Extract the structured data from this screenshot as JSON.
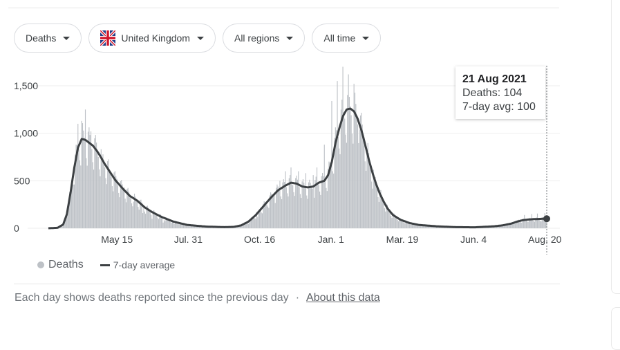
{
  "filters": {
    "metric": "Deaths",
    "country": "United Kingdom",
    "country_flag_icon": "uk-flag-icon",
    "region": "All regions",
    "time": "All time"
  },
  "tooltip": {
    "date": "21 Aug 2021",
    "deaths": "Deaths: 104",
    "avg": "7-day avg: 100"
  },
  "legend": {
    "deaths": "Deaths",
    "avg": "7-day average"
  },
  "footer": {
    "note": "Each day shows deaths reported since the previous day",
    "separator": "·",
    "link": "About this data"
  },
  "colors": {
    "bars": "#bdc1c6",
    "line": "#3c4043",
    "grid": "#eeeeee",
    "axis_text": "#3c4043"
  },
  "chart_data": {
    "type": "bar",
    "title": "",
    "xlabel": "",
    "ylabel": "",
    "ylim": [
      0,
      1700
    ],
    "yticks": [
      0,
      500,
      1000,
      1500
    ],
    "ytick_labels": [
      "0",
      "500",
      "1,000",
      "1,500"
    ],
    "xlim_days": [
      0,
      538
    ],
    "xticks_days": [
      74,
      151,
      228,
      305,
      382,
      459,
      536
    ],
    "xtick_labels": [
      "May 15",
      "Jul. 31",
      "Oct. 16",
      "Jan. 1",
      "Mar. 19",
      "Jun. 4",
      "Aug. 20"
    ],
    "grid": true,
    "legend_position": "bottom-left",
    "series": [
      {
        "name": "7-day average",
        "type": "line",
        "x_days": [
          0,
          10,
          16,
          20,
          24,
          28,
          32,
          36,
          40,
          44,
          48,
          52,
          56,
          60,
          66,
          72,
          80,
          88,
          96,
          104,
          112,
          122,
          135,
          150,
          170,
          190,
          200,
          208,
          216,
          224,
          232,
          240,
          248,
          256,
          262,
          268,
          274,
          280,
          286,
          292,
          298,
          302,
          306,
          310,
          314,
          318,
          322,
          326,
          330,
          334,
          338,
          342,
          346,
          350,
          354,
          358,
          362,
          366,
          372,
          380,
          390,
          400,
          420,
          440,
          460,
          480,
          490,
          500,
          506,
          512,
          518,
          524,
          530,
          534,
          538
        ],
        "values": [
          0,
          5,
          40,
          150,
          380,
          640,
          850,
          940,
          930,
          900,
          870,
          820,
          760,
          690,
          600,
          510,
          420,
          340,
          290,
          220,
          170,
          120,
          70,
          35,
          18,
          12,
          15,
          30,
          70,
          140,
          230,
          320,
          400,
          450,
          480,
          470,
          440,
          430,
          440,
          480,
          500,
          560,
          700,
          900,
          1050,
          1180,
          1250,
          1260,
          1230,
          1150,
          1030,
          880,
          720,
          580,
          460,
          360,
          280,
          210,
          140,
          90,
          55,
          35,
          20,
          12,
          10,
          20,
          30,
          50,
          70,
          85,
          92,
          96,
          98,
          100,
          100
        ]
      },
      {
        "name": "Deaths",
        "type": "bar",
        "peak_values": [
          1250,
          1130,
          1100,
          1020,
          730,
          600,
          520,
          430,
          280,
          160,
          100,
          60,
          45,
          30,
          20,
          15,
          12,
          20,
          45,
          120,
          250,
          350,
          500,
          600,
          640,
          600,
          580,
          560,
          640,
          880,
          1340,
          1550,
          1700,
          1620,
          1520,
          1040,
          780,
          500,
          270,
          130,
          60,
          40,
          25,
          15,
          12,
          12,
          18,
          40,
          90,
          140,
          150,
          155,
          160
        ],
        "peak_days": [
          40,
          36,
          32,
          46,
          58,
          66,
          74,
          82,
          92,
          102,
          112,
          124,
          136,
          148,
          160,
          175,
          190,
          205,
          216,
          226,
          236,
          244,
          250,
          256,
          262,
          270,
          278,
          286,
          290,
          298,
          306,
          312,
          318,
          324,
          330,
          336,
          344,
          352,
          362,
          372,
          384,
          396,
          410,
          430,
          450,
          470,
          490,
          500,
          508,
          514,
          522,
          528,
          536
        ],
        "last_value": 104
      }
    ]
  }
}
